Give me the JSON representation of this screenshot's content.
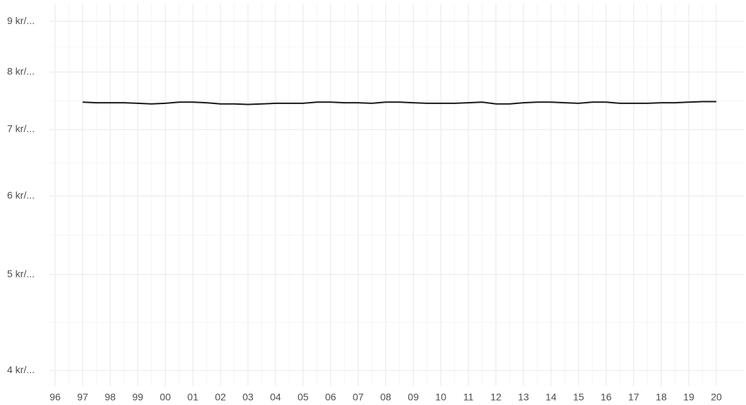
{
  "chart_data": {
    "type": "line",
    "log_y": true,
    "grid": true,
    "color": "#1a1a1a",
    "x": [
      1997.0,
      1997.5,
      1998.0,
      1998.5,
      1999.0,
      1999.5,
      2000.0,
      2000.5,
      2001.0,
      2001.5,
      2002.0,
      2002.5,
      2003.0,
      2003.5,
      2004.0,
      2004.5,
      2005.0,
      2005.5,
      2006.0,
      2006.5,
      2007.0,
      2007.5,
      2008.0,
      2008.5,
      2009.0,
      2009.5,
      2010.0,
      2010.5,
      2011.0,
      2011.5,
      2012.0,
      2012.5,
      2013.0,
      2013.5,
      2014.0,
      2014.5,
      2015.0,
      2015.5,
      2016.0,
      2016.5,
      2017.0,
      2017.5,
      2018.0,
      2018.5,
      2019.0,
      2019.5,
      2020.0
    ],
    "values": [
      7.46,
      7.45,
      7.45,
      7.45,
      7.44,
      7.43,
      7.44,
      7.46,
      7.46,
      7.45,
      7.43,
      7.43,
      7.42,
      7.43,
      7.44,
      7.44,
      7.44,
      7.46,
      7.46,
      7.45,
      7.45,
      7.44,
      7.46,
      7.46,
      7.45,
      7.44,
      7.44,
      7.44,
      7.45,
      7.46,
      7.43,
      7.43,
      7.45,
      7.46,
      7.46,
      7.45,
      7.44,
      7.46,
      7.46,
      7.44,
      7.44,
      7.44,
      7.45,
      7.45,
      7.46,
      7.47,
      7.47
    ],
    "xlim": [
      1995.8,
      2021.0
    ],
    "ylim": [
      3.86,
      9.38
    ],
    "xticks": [
      {
        "value": 1996,
        "label": "96"
      },
      {
        "value": 1997,
        "label": "97"
      },
      {
        "value": 1998,
        "label": "98"
      },
      {
        "value": 1999,
        "label": "99"
      },
      {
        "value": 2000,
        "label": "00"
      },
      {
        "value": 2001,
        "label": "01"
      },
      {
        "value": 2002,
        "label": "02"
      },
      {
        "value": 2003,
        "label": "03"
      },
      {
        "value": 2004,
        "label": "04"
      },
      {
        "value": 2005,
        "label": "05"
      },
      {
        "value": 2006,
        "label": "06"
      },
      {
        "value": 2007,
        "label": "07"
      },
      {
        "value": 2008,
        "label": "08"
      },
      {
        "value": 2009,
        "label": "09"
      },
      {
        "value": 2010,
        "label": "10"
      },
      {
        "value": 2011,
        "label": "11"
      },
      {
        "value": 2012,
        "label": "12"
      },
      {
        "value": 2013,
        "label": "13"
      },
      {
        "value": 2014,
        "label": "14"
      },
      {
        "value": 2015,
        "label": "15"
      },
      {
        "value": 2016,
        "label": "16"
      },
      {
        "value": 2017,
        "label": "17"
      },
      {
        "value": 2018,
        "label": "18"
      },
      {
        "value": 2019,
        "label": "19"
      },
      {
        "value": 2020,
        "label": "20"
      }
    ],
    "yticks": [
      {
        "value": 4,
        "label": "4 kr/..."
      },
      {
        "value": 5,
        "label": "5 kr/..."
      },
      {
        "value": 6,
        "label": "6 kr/..."
      },
      {
        "value": 7,
        "label": "7 kr/..."
      },
      {
        "value": 8,
        "label": "8 kr/..."
      },
      {
        "value": 9,
        "label": "9 kr/..."
      }
    ]
  }
}
